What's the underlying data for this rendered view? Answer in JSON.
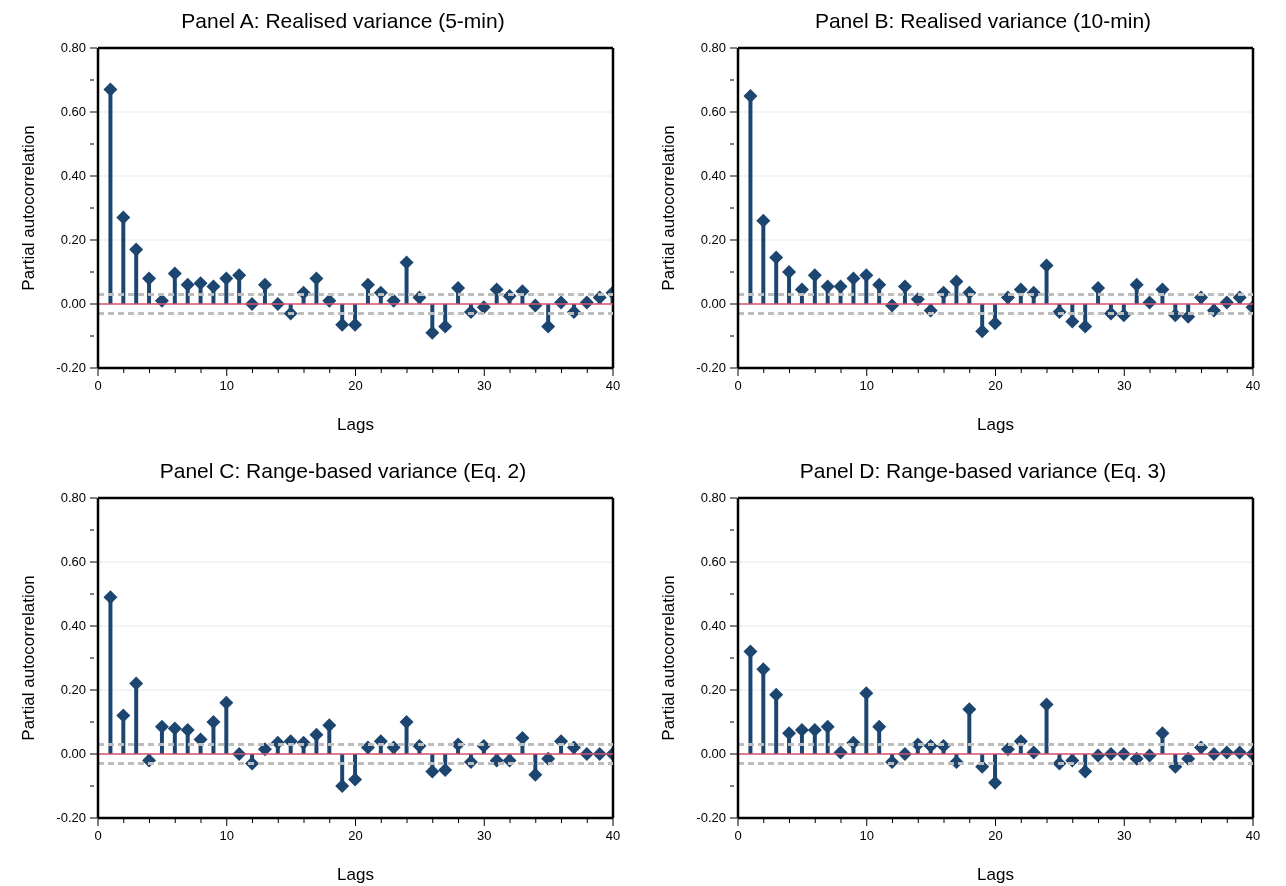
{
  "chart_data": [
    {
      "type": "lollipop",
      "title": "Panel A: Realised variance (5-min)",
      "xlabel": "Lags",
      "ylabel": "Partial autocorrelation",
      "color": "#1c4670",
      "marker": "diamond",
      "grid": "y",
      "x": [
        1,
        2,
        3,
        4,
        5,
        6,
        7,
        8,
        9,
        10,
        11,
        12,
        13,
        14,
        15,
        16,
        17,
        18,
        19,
        20,
        21,
        22,
        23,
        24,
        25,
        26,
        27,
        28,
        29,
        30,
        31,
        32,
        33,
        34,
        35,
        36,
        37,
        38,
        39,
        40
      ],
      "values": [
        0.67,
        0.27,
        0.17,
        0.08,
        0.01,
        0.095,
        0.06,
        0.065,
        0.055,
        0.08,
        0.09,
        0.0,
        0.06,
        0.0,
        -0.03,
        0.035,
        0.08,
        0.01,
        -0.065,
        -0.065,
        0.06,
        0.035,
        0.01,
        0.13,
        0.02,
        -0.09,
        -0.07,
        0.05,
        -0.025,
        -0.01,
        0.045,
        0.025,
        0.04,
        -0.005,
        -0.07,
        0.005,
        -0.025,
        0.005,
        0.02,
        0.035
      ],
      "xlim": [
        0,
        40
      ],
      "xticks": [
        0,
        {
          "value": 2,
          "label": null
        },
        {
          "value": 4,
          "label": null
        },
        {
          "value": 6,
          "label": null
        },
        {
          "value": 8,
          "label": null
        },
        10,
        {
          "value": 12,
          "label": null
        },
        {
          "value": 14,
          "label": null
        },
        {
          "value": 16,
          "label": null
        },
        {
          "value": 18,
          "label": null
        },
        20,
        {
          "value": 22,
          "label": null
        },
        {
          "value": 24,
          "label": null
        },
        {
          "value": 26,
          "label": null
        },
        {
          "value": 28,
          "label": null
        },
        30,
        {
          "value": 32,
          "label": null
        },
        {
          "value": 34,
          "label": null
        },
        {
          "value": 36,
          "label": null
        },
        {
          "value": 38,
          "label": null
        },
        40
      ],
      "ylim": [
        -0.2,
        0.8
      ],
      "yticks": [
        {
          "value": -0.2,
          "label": "-0.20"
        },
        {
          "value": -0.1,
          "label": null
        },
        {
          "value": 0,
          "label": "0.00"
        },
        {
          "value": 0.1,
          "label": null
        },
        {
          "value": 0.2,
          "label": "0.20"
        },
        {
          "value": 0.3,
          "label": null
        },
        {
          "value": 0.4,
          "label": "0.40"
        },
        {
          "value": 0.5,
          "label": null
        },
        {
          "value": 0.6,
          "label": "0.60"
        },
        {
          "value": 0.7,
          "label": null
        },
        {
          "value": 0.8,
          "label": "0.80"
        }
      ],
      "ref_lines": [
        {
          "axis": "y",
          "value": 0,
          "color": "#d9506e",
          "line_style": "solid"
        },
        {
          "axis": "y",
          "value": 0.03,
          "color": "#bdbdbd",
          "line_style": "dashed"
        },
        {
          "axis": "y",
          "value": -0.03,
          "color": "#bdbdbd",
          "line_style": "dashed"
        }
      ]
    },
    {
      "type": "lollipop",
      "title": "Panel B: Realised variance (10-min)",
      "xlabel": "Lags",
      "ylabel": "Partial autocorrelation",
      "color": "#1c4670",
      "marker": "diamond",
      "grid": "y",
      "x": [
        1,
        2,
        3,
        4,
        5,
        6,
        7,
        8,
        9,
        10,
        11,
        12,
        13,
        14,
        15,
        16,
        17,
        18,
        19,
        20,
        21,
        22,
        23,
        24,
        25,
        26,
        27,
        28,
        29,
        30,
        31,
        32,
        33,
        34,
        35,
        36,
        37,
        38,
        39,
        40
      ],
      "values": [
        0.65,
        0.26,
        0.145,
        0.1,
        0.045,
        0.09,
        0.055,
        0.055,
        0.08,
        0.09,
        0.06,
        -0.005,
        0.055,
        0.015,
        -0.02,
        0.035,
        0.07,
        0.035,
        -0.085,
        -0.06,
        0.02,
        0.045,
        0.035,
        0.12,
        -0.025,
        -0.055,
        -0.07,
        0.05,
        -0.03,
        -0.035,
        0.06,
        0.005,
        0.045,
        -0.035,
        -0.04,
        0.02,
        -0.02,
        0.005,
        0.02,
        -0.01
      ],
      "xlim": [
        0,
        40
      ],
      "xticks": [
        0,
        {
          "value": 2,
          "label": null
        },
        {
          "value": 4,
          "label": null
        },
        {
          "value": 6,
          "label": null
        },
        {
          "value": 8,
          "label": null
        },
        10,
        {
          "value": 12,
          "label": null
        },
        {
          "value": 14,
          "label": null
        },
        {
          "value": 16,
          "label": null
        },
        {
          "value": 18,
          "label": null
        },
        20,
        {
          "value": 22,
          "label": null
        },
        {
          "value": 24,
          "label": null
        },
        {
          "value": 26,
          "label": null
        },
        {
          "value": 28,
          "label": null
        },
        30,
        {
          "value": 32,
          "label": null
        },
        {
          "value": 34,
          "label": null
        },
        {
          "value": 36,
          "label": null
        },
        {
          "value": 38,
          "label": null
        },
        40
      ],
      "ylim": [
        -0.2,
        0.8
      ],
      "yticks": [
        {
          "value": -0.2,
          "label": "-0.20"
        },
        {
          "value": -0.1,
          "label": null
        },
        {
          "value": 0,
          "label": "0.00"
        },
        {
          "value": 0.1,
          "label": null
        },
        {
          "value": 0.2,
          "label": "0.20"
        },
        {
          "value": 0.3,
          "label": null
        },
        {
          "value": 0.4,
          "label": "0.40"
        },
        {
          "value": 0.5,
          "label": null
        },
        {
          "value": 0.6,
          "label": "0.60"
        },
        {
          "value": 0.7,
          "label": null
        },
        {
          "value": 0.8,
          "label": "0.80"
        }
      ],
      "ref_lines": [
        {
          "axis": "y",
          "value": 0,
          "color": "#d9506e",
          "line_style": "solid"
        },
        {
          "axis": "y",
          "value": 0.03,
          "color": "#bdbdbd",
          "line_style": "dashed"
        },
        {
          "axis": "y",
          "value": -0.03,
          "color": "#bdbdbd",
          "line_style": "dashed"
        }
      ]
    },
    {
      "type": "lollipop",
      "title": "Panel C: Range-based variance (Eq. 2)",
      "xlabel": "Lags",
      "ylabel": "Partial autocorrelation",
      "color": "#1c4670",
      "marker": "diamond",
      "grid": "y",
      "x": [
        1,
        2,
        3,
        4,
        5,
        6,
        7,
        8,
        9,
        10,
        11,
        12,
        13,
        14,
        15,
        16,
        17,
        18,
        19,
        20,
        21,
        22,
        23,
        24,
        25,
        26,
        27,
        28,
        29,
        30,
        31,
        32,
        33,
        34,
        35,
        36,
        37,
        38,
        39,
        40
      ],
      "values": [
        0.49,
        0.12,
        0.22,
        -0.02,
        0.085,
        0.08,
        0.075,
        0.045,
        0.1,
        0.16,
        0.0,
        -0.03,
        0.015,
        0.035,
        0.04,
        0.035,
        0.06,
        0.09,
        -0.1,
        -0.08,
        0.02,
        0.04,
        0.02,
        0.1,
        0.025,
        -0.055,
        -0.05,
        0.03,
        -0.025,
        0.025,
        -0.02,
        -0.02,
        0.05,
        -0.065,
        -0.015,
        0.04,
        0.02,
        0.0,
        0.0,
        0.0
      ],
      "xlim": [
        0,
        40
      ],
      "xticks": [
        0,
        {
          "value": 2,
          "label": null
        },
        {
          "value": 4,
          "label": null
        },
        {
          "value": 6,
          "label": null
        },
        {
          "value": 8,
          "label": null
        },
        10,
        {
          "value": 12,
          "label": null
        },
        {
          "value": 14,
          "label": null
        },
        {
          "value": 16,
          "label": null
        },
        {
          "value": 18,
          "label": null
        },
        20,
        {
          "value": 22,
          "label": null
        },
        {
          "value": 24,
          "label": null
        },
        {
          "value": 26,
          "label": null
        },
        {
          "value": 28,
          "label": null
        },
        30,
        {
          "value": 32,
          "label": null
        },
        {
          "value": 34,
          "label": null
        },
        {
          "value": 36,
          "label": null
        },
        {
          "value": 38,
          "label": null
        },
        40
      ],
      "ylim": [
        -0.2,
        0.8
      ],
      "yticks": [
        {
          "value": -0.2,
          "label": "-0.20"
        },
        {
          "value": -0.1,
          "label": null
        },
        {
          "value": 0,
          "label": "0.00"
        },
        {
          "value": 0.1,
          "label": null
        },
        {
          "value": 0.2,
          "label": "0.20"
        },
        {
          "value": 0.3,
          "label": null
        },
        {
          "value": 0.4,
          "label": "0.40"
        },
        {
          "value": 0.5,
          "label": null
        },
        {
          "value": 0.6,
          "label": "0.60"
        },
        {
          "value": 0.7,
          "label": null
        },
        {
          "value": 0.8,
          "label": "0.80"
        }
      ],
      "ref_lines": [
        {
          "axis": "y",
          "value": 0,
          "color": "#d9506e",
          "line_style": "solid"
        },
        {
          "axis": "y",
          "value": 0.03,
          "color": "#bdbdbd",
          "line_style": "dashed"
        },
        {
          "axis": "y",
          "value": -0.03,
          "color": "#bdbdbd",
          "line_style": "dashed"
        }
      ]
    },
    {
      "type": "lollipop",
      "title": "Panel D: Range-based variance (Eq. 3)",
      "xlabel": "Lags",
      "ylabel": "Partial autocorrelation",
      "color": "#1c4670",
      "marker": "diamond",
      "grid": "y",
      "x": [
        1,
        2,
        3,
        4,
        5,
        6,
        7,
        8,
        9,
        10,
        11,
        12,
        13,
        14,
        15,
        16,
        17,
        18,
        19,
        20,
        21,
        22,
        23,
        24,
        25,
        26,
        27,
        28,
        29,
        30,
        31,
        32,
        33,
        34,
        35,
        36,
        37,
        38,
        39,
        40
      ],
      "values": [
        0.32,
        0.265,
        0.185,
        0.065,
        0.075,
        0.075,
        0.085,
        0.005,
        0.035,
        0.19,
        0.085,
        -0.025,
        0.0,
        0.03,
        0.025,
        0.025,
        -0.025,
        0.14,
        -0.04,
        -0.09,
        0.015,
        0.04,
        0.005,
        0.155,
        -0.03,
        -0.02,
        -0.055,
        -0.005,
        0.0,
        0.0,
        -0.015,
        -0.005,
        0.065,
        -0.04,
        -0.015,
        0.02,
        0.0,
        0.005,
        0.005,
        0.0
      ],
      "xlim": [
        0,
        40
      ],
      "xticks": [
        0,
        {
          "value": 2,
          "label": null
        },
        {
          "value": 4,
          "label": null
        },
        {
          "value": 6,
          "label": null
        },
        {
          "value": 8,
          "label": null
        },
        10,
        {
          "value": 12,
          "label": null
        },
        {
          "value": 14,
          "label": null
        },
        {
          "value": 16,
          "label": null
        },
        {
          "value": 18,
          "label": null
        },
        20,
        {
          "value": 22,
          "label": null
        },
        {
          "value": 24,
          "label": null
        },
        {
          "value": 26,
          "label": null
        },
        {
          "value": 28,
          "label": null
        },
        30,
        {
          "value": 32,
          "label": null
        },
        {
          "value": 34,
          "label": null
        },
        {
          "value": 36,
          "label": null
        },
        {
          "value": 38,
          "label": null
        },
        40
      ],
      "ylim": [
        -0.2,
        0.8
      ],
      "yticks": [
        {
          "value": -0.2,
          "label": "-0.20"
        },
        {
          "value": -0.1,
          "label": null
        },
        {
          "value": 0,
          "label": "0.00"
        },
        {
          "value": 0.1,
          "label": null
        },
        {
          "value": 0.2,
          "label": "0.20"
        },
        {
          "value": 0.3,
          "label": null
        },
        {
          "value": 0.4,
          "label": "0.40"
        },
        {
          "value": 0.5,
          "label": null
        },
        {
          "value": 0.6,
          "label": "0.60"
        },
        {
          "value": 0.7,
          "label": null
        },
        {
          "value": 0.8,
          "label": "0.80"
        }
      ],
      "ref_lines": [
        {
          "axis": "y",
          "value": 0,
          "color": "#d9506e",
          "line_style": "solid"
        },
        {
          "axis": "y",
          "value": 0.03,
          "color": "#bdbdbd",
          "line_style": "dashed"
        },
        {
          "axis": "y",
          "value": -0.03,
          "color": "#bdbdbd",
          "line_style": "dashed"
        }
      ]
    }
  ]
}
